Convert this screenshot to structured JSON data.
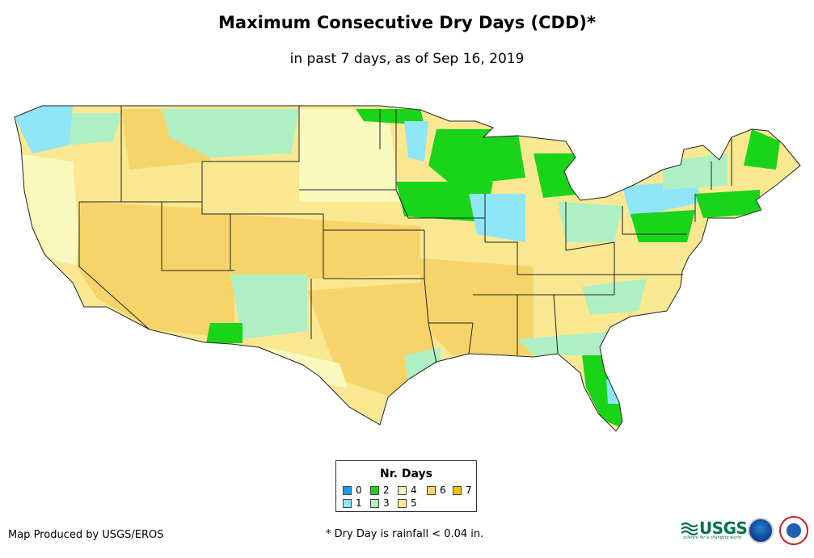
{
  "title": "Maximum Consecutive Dry Days (CDD)*",
  "subtitle": "in past 7 days, as of Sep 16, 2019",
  "legend": {
    "title": "Nr. Days",
    "items": [
      {
        "label": "0",
        "color": "#1e9be6"
      },
      {
        "label": "1",
        "color": "#8ee6f6"
      },
      {
        "label": "2",
        "color": "#19d419"
      },
      {
        "label": "3",
        "color": "#aef0c4"
      },
      {
        "label": "4",
        "color": "#f9f8bd"
      },
      {
        "label": "5",
        "color": "#f9e891"
      },
      {
        "label": "6",
        "color": "#f7d46a"
      },
      {
        "label": "7",
        "color": "#f7c200"
      }
    ]
  },
  "footer": {
    "credit": "Map Produced by USGS/EROS",
    "note": "* Dry Day is rainfall < 0.04 in."
  },
  "logos": {
    "usgs": "USGS",
    "usgs_tagline": "science for a changing world",
    "noaa_icon": "noaa-logo-icon",
    "nws_icon": "nws-logo-icon"
  }
}
